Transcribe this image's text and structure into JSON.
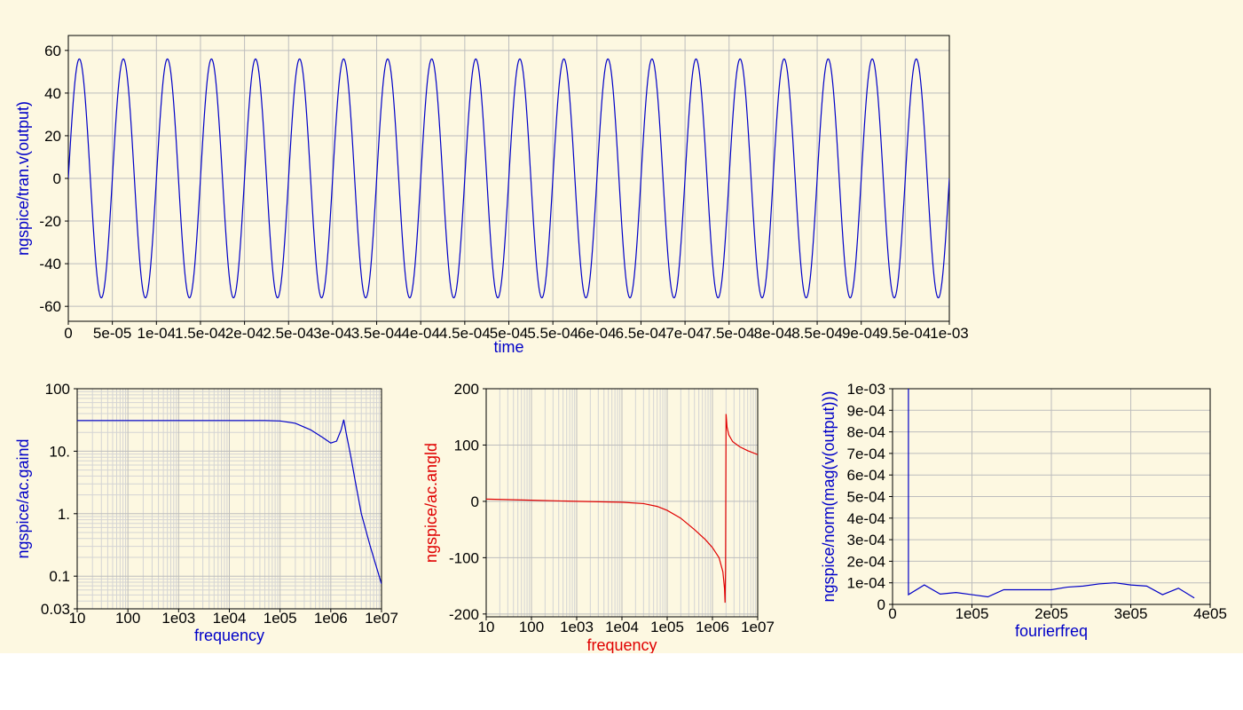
{
  "chart_data": [
    {
      "id": "transient",
      "type": "line",
      "xlabel": "time",
      "ylabel": "ngspice/tran.v(output)",
      "xlim": [
        0,
        0.001
      ],
      "ylim": [
        -67,
        67
      ],
      "x_ticks": [
        0,
        5e-05,
        0.0001,
        0.00015,
        0.0002,
        0.00025,
        0.0003,
        0.00035,
        0.0004,
        0.00045,
        0.0005,
        0.00055,
        0.0006,
        0.00065,
        0.0007,
        0.00075,
        0.0008,
        0.00085,
        0.0009,
        0.00095,
        0.001
      ],
      "x_tick_labels": [
        "0",
        "5e-05",
        "1e-04",
        "1.5e-04",
        "2e-04",
        "2.5e-04",
        "3e-04",
        "3.5e-04",
        "4e-04",
        "4.5e-04",
        "5e-04",
        "5.5e-04",
        "6e-04",
        "6.5e-04",
        "7e-04",
        "7.5e-04",
        "8e-04",
        "8.5e-04",
        "9e-04",
        "9.5e-04",
        "1e-03"
      ],
      "y_ticks": [
        60,
        40,
        20,
        0,
        -20,
        -40,
        -60
      ],
      "y_tick_labels": [
        "60",
        "40",
        "20",
        "0",
        "-20",
        "-40",
        "-60"
      ],
      "grid": true,
      "series": [
        {
          "color": "#0000c8",
          "signal": {
            "form": "sine",
            "amplitude": 56,
            "frequency_hz": 20000,
            "x_start": 0,
            "x_end": 0.001
          }
        }
      ]
    },
    {
      "id": "gain",
      "type": "line",
      "xlabel": "frequency",
      "ylabel": "ngspice/ac.gaind",
      "xscale": "log",
      "yscale": "log",
      "xlim": [
        10,
        10000000
      ],
      "ylim": [
        0.03,
        100
      ],
      "x_ticks": [
        10,
        100,
        1000,
        10000,
        100000,
        1000000,
        10000000
      ],
      "x_tick_labels": [
        "10",
        "100",
        "1e03",
        "1e04",
        "1e05",
        "1e06",
        "1e07"
      ],
      "y_ticks": [
        100,
        10,
        1,
        0.1,
        0.03
      ],
      "y_tick_labels": [
        "100",
        "10.",
        "1.",
        "0.1",
        "0.03"
      ],
      "grid": true,
      "series": [
        {
          "color": "#0000c8",
          "x": [
            10,
            100,
            1000,
            10000,
            50000,
            100000,
            200000,
            400000,
            700000,
            1000000,
            1300000,
            1600000,
            1800000,
            2000000,
            2500000,
            3000000,
            4000000,
            6000000,
            10000000
          ],
          "y": [
            31,
            31,
            31,
            31,
            31,
            30.5,
            28,
            22,
            16.5,
            13.5,
            14.5,
            22,
            32,
            20,
            8,
            3.5,
            1,
            0.3,
            0.075
          ]
        }
      ]
    },
    {
      "id": "phase",
      "type": "line",
      "xlabel": "frequency",
      "ylabel": "ngspice/ac.angld",
      "xscale": "log",
      "xlim": [
        10,
        10000000
      ],
      "ylim": [
        -205,
        200
      ],
      "x_ticks": [
        10,
        100,
        1000,
        10000,
        100000,
        1000000,
        10000000
      ],
      "x_tick_labels": [
        "10",
        "100",
        "1e03",
        "1e04",
        "1e05",
        "1e06",
        "1e07"
      ],
      "y_ticks": [
        200,
        100,
        0,
        -100,
        -200
      ],
      "y_tick_labels": [
        "200",
        "100",
        "0",
        "-100",
        "-200"
      ],
      "grid": true,
      "series": [
        {
          "color": "#e00000",
          "x": [
            10,
            100,
            1000,
            10000,
            30000,
            60000,
            100000,
            200000,
            400000,
            700000,
            1000000,
            1400000,
            1700000,
            1850000,
            1900000,
            1950000,
            2000000,
            2100000,
            2300000,
            2800000,
            4000000,
            6000000,
            10000000
          ],
          "y": [
            4,
            2,
            0,
            -1.5,
            -4,
            -9,
            -16,
            -30,
            -50,
            -68,
            -82,
            -100,
            -125,
            -155,
            -180,
            -120,
            155,
            132,
            118,
            106,
            97,
            90,
            83
          ]
        }
      ]
    },
    {
      "id": "fourier",
      "type": "line",
      "xlabel": "fourierfreq",
      "ylabel": "ngspice/norm(mag(v(output)))",
      "xlim": [
        0,
        400000
      ],
      "ylim": [
        0,
        0.001
      ],
      "x_ticks": [
        0,
        100000,
        200000,
        300000,
        400000
      ],
      "x_tick_labels": [
        "0",
        "1e05",
        "2e05",
        "3e05",
        "4e05"
      ],
      "y_ticks": [
        0.001,
        0.0009,
        0.0008,
        0.0007,
        0.0006,
        0.0005,
        0.0004,
        0.0003,
        0.0002,
        0.0001,
        0
      ],
      "y_tick_labels": [
        "1e-03",
        "9e-04",
        "8e-04",
        "7e-04",
        "6e-04",
        "5e-04",
        "4e-04",
        "3e-04",
        "2e-04",
        "1e-04",
        "0"
      ],
      "grid": true,
      "series": [
        {
          "color": "#0000c8",
          "x": [
            20000,
            20000,
            40000,
            60000,
            80000,
            100000,
            120000,
            140000,
            160000,
            180000,
            200000,
            220000,
            240000,
            260000,
            280000,
            300000,
            320000,
            340000,
            360000,
            380000
          ],
          "y": [
            0.001,
            4.5e-05,
            9e-05,
            4.8e-05,
            5.5e-05,
            4.5e-05,
            3.5e-05,
            6.8e-05,
            6.8e-05,
            6.8e-05,
            6.8e-05,
            8e-05,
            8.5e-05,
            9.5e-05,
            0.0001,
            9e-05,
            8.5e-05,
            4.5e-05,
            7.5e-05,
            3e-05
          ]
        }
      ]
    }
  ]
}
